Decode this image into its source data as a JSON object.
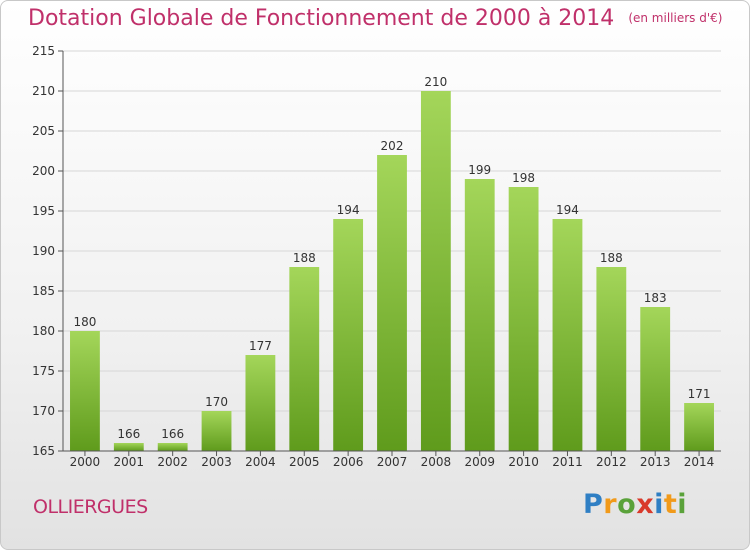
{
  "title": "Dotation Globale de Fonctionnement de 2000 à 2014",
  "unit": "(en milliers d'€)",
  "commune": "OLLIERGUES",
  "logo": {
    "text": "Proxiti",
    "colors": [
      "#2f7fc4",
      "#f19a1a",
      "#5aa23a",
      "#d93a2b",
      "#2f7fc4",
      "#f19a1a",
      "#5aa23a"
    ]
  },
  "colors": {
    "bar_top": "#a4d65a",
    "bar_bottom": "#5f9b1c",
    "title": "#c0306a",
    "grid": "#d7d7d7"
  },
  "chart_data": {
    "type": "bar",
    "categories": [
      "2000",
      "2001",
      "2002",
      "2003",
      "2004",
      "2005",
      "2006",
      "2007",
      "2008",
      "2009",
      "2010",
      "2011",
      "2012",
      "2013",
      "2014"
    ],
    "values": [
      180,
      166,
      166,
      170,
      177,
      188,
      194,
      202,
      210,
      199,
      198,
      194,
      188,
      183,
      171
    ],
    "ylim": [
      165,
      215
    ],
    "yticks": [
      165,
      170,
      175,
      180,
      185,
      190,
      195,
      200,
      205,
      210,
      215
    ],
    "grid": true,
    "xlabel": "",
    "ylabel": ""
  }
}
